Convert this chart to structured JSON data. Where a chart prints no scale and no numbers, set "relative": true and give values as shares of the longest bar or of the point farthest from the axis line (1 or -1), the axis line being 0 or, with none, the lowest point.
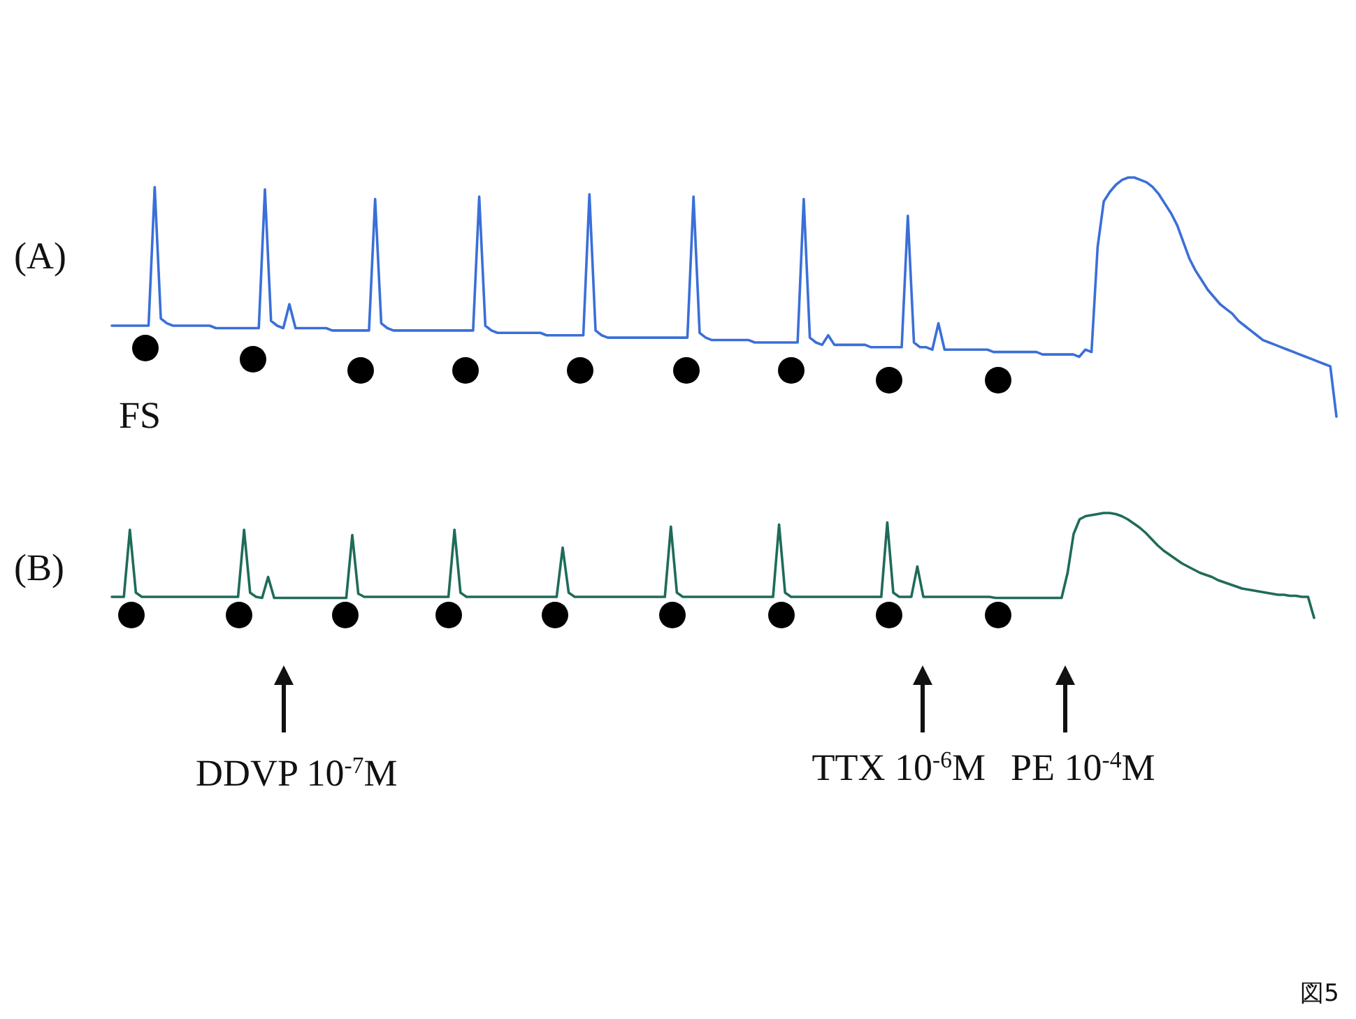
{
  "chart_data": [
    {
      "type": "line",
      "title": "(A)",
      "relative": true,
      "categories": [
        null,
        null,
        null,
        null,
        null,
        null,
        null,
        null,
        null,
        null,
        null,
        null,
        null,
        null,
        null,
        null,
        null,
        null,
        null,
        null,
        null,
        null,
        null,
        null,
        null,
        null,
        null,
        null,
        null,
        null,
        null,
        null,
        null,
        null,
        null,
        null,
        null,
        null,
        null,
        null,
        null,
        null,
        null,
        null,
        null,
        null,
        null,
        null,
        null,
        null,
        null,
        null,
        null,
        null,
        null,
        null,
        null,
        null,
        null,
        null,
        null,
        null,
        null,
        null,
        null,
        null,
        null,
        null,
        null,
        null,
        null,
        null,
        null,
        null,
        null,
        null,
        null,
        null,
        null,
        null,
        null,
        null,
        null,
        null,
        null,
        null,
        null,
        null,
        null,
        null,
        null,
        null,
        null,
        null,
        null,
        null,
        null,
        null,
        null,
        null,
        null,
        null,
        null,
        null,
        null,
        null,
        null,
        null,
        null,
        null,
        null,
        null,
        null,
        null,
        null,
        null,
        null,
        null,
        null,
        null,
        null,
        null,
        null,
        null,
        null,
        null,
        null,
        null,
        null,
        null,
        null,
        null,
        null,
        null,
        null,
        null,
        null,
        null,
        null,
        null,
        null,
        null,
        null,
        null,
        null,
        null,
        null,
        null,
        null,
        null,
        null,
        null,
        null,
        null,
        null,
        null,
        null,
        null,
        null,
        null,
        null,
        null,
        null,
        null,
        null,
        null,
        null,
        null,
        null,
        null,
        null,
        null,
        null,
        null,
        null,
        null,
        null,
        null,
        null,
        null,
        null,
        null,
        null,
        null,
        null,
        null,
        null,
        null,
        null,
        null,
        null,
        null,
        null,
        null,
        null,
        null,
        null,
        null,
        null,
        null,
        null
      ],
      "series": [
        {
          "color": "#3a6fd8",
          "values": [
            0.38,
            0.38,
            0.38,
            0.38,
            0.38,
            0.38,
            0.38,
            0.96,
            0.41,
            0.39,
            0.38,
            0.38,
            0.38,
            0.38,
            0.38,
            0.38,
            0.38,
            0.37,
            0.37,
            0.37,
            0.37,
            0.37,
            0.37,
            0.37,
            0.37,
            0.95,
            0.4,
            0.38,
            0.37,
            0.47,
            0.37,
            0.37,
            0.37,
            0.37,
            0.37,
            0.37,
            0.36,
            0.36,
            0.36,
            0.36,
            0.36,
            0.36,
            0.36,
            0.91,
            0.39,
            0.37,
            0.36,
            0.36,
            0.36,
            0.36,
            0.36,
            0.36,
            0.36,
            0.36,
            0.36,
            0.36,
            0.36,
            0.36,
            0.36,
            0.36,
            0.92,
            0.38,
            0.36,
            0.35,
            0.35,
            0.35,
            0.35,
            0.35,
            0.35,
            0.35,
            0.35,
            0.34,
            0.34,
            0.34,
            0.34,
            0.34,
            0.34,
            0.34,
            0.93,
            0.36,
            0.34,
            0.33,
            0.33,
            0.33,
            0.33,
            0.33,
            0.33,
            0.33,
            0.33,
            0.33,
            0.33,
            0.33,
            0.33,
            0.33,
            0.33,
            0.92,
            0.35,
            0.33,
            0.32,
            0.32,
            0.32,
            0.32,
            0.32,
            0.32,
            0.32,
            0.31,
            0.31,
            0.31,
            0.31,
            0.31,
            0.31,
            0.31,
            0.31,
            0.91,
            0.33,
            0.31,
            0.3,
            0.34,
            0.3,
            0.3,
            0.3,
            0.3,
            0.3,
            0.3,
            0.29,
            0.29,
            0.29,
            0.29,
            0.29,
            0.29,
            0.84,
            0.31,
            0.29,
            0.29,
            0.28,
            0.39,
            0.28,
            0.28,
            0.28,
            0.28,
            0.28,
            0.28,
            0.28,
            0.28,
            0.27,
            0.27,
            0.27,
            0.27,
            0.27,
            0.27,
            0.27,
            0.27,
            0.26,
            0.26,
            0.26,
            0.26,
            0.26,
            0.26,
            0.25,
            0.28,
            0.27,
            0.71,
            0.9,
            0.94,
            0.97,
            0.99,
            1.0,
            1.0,
            0.99,
            0.98,
            0.96,
            0.93,
            0.89,
            0.85,
            0.8,
            0.73,
            0.66,
            0.61,
            0.57,
            0.53,
            0.5,
            0.47,
            0.45,
            0.43,
            0.4,
            0.38,
            0.36,
            0.34,
            0.32,
            0.31,
            0.3,
            0.29,
            0.28,
            0.27,
            0.26,
            0.25,
            0.24,
            0.23,
            0.22,
            0.21,
            0
          ]
        }
      ],
      "annotations": [
        "FS"
      ]
    },
    {
      "type": "line",
      "title": "(B)",
      "relative": true,
      "categories": [
        null,
        null,
        null,
        null,
        null,
        null,
        null,
        null,
        null,
        null,
        null,
        null,
        null,
        null,
        null,
        null,
        null,
        null,
        null,
        null,
        null,
        null,
        null,
        null,
        null,
        null,
        null,
        null,
        null,
        null,
        null,
        null,
        null,
        null,
        null,
        null,
        null,
        null,
        null,
        null,
        null,
        null,
        null,
        null,
        null,
        null,
        null,
        null,
        null,
        null,
        null,
        null,
        null,
        null,
        null,
        null,
        null,
        null,
        null,
        null,
        null,
        null,
        null,
        null,
        null,
        null,
        null,
        null,
        null,
        null,
        null,
        null,
        null,
        null,
        null,
        null,
        null,
        null,
        null,
        null,
        null,
        null,
        null,
        null,
        null,
        null,
        null,
        null,
        null,
        null,
        null,
        null,
        null,
        null,
        null,
        null,
        null,
        null,
        null,
        null,
        null,
        null,
        null,
        null,
        null,
        null,
        null,
        null,
        null,
        null,
        null,
        null,
        null,
        null,
        null,
        null,
        null,
        null,
        null,
        null,
        null,
        null,
        null,
        null,
        null,
        null,
        null,
        null,
        null,
        null,
        null,
        null,
        null,
        null,
        null,
        null,
        null,
        null,
        null,
        null,
        null,
        null,
        null,
        null,
        null,
        null,
        null,
        null,
        null,
        null,
        null,
        null,
        null,
        null,
        null,
        null,
        null,
        null,
        null,
        null,
        null,
        null,
        null,
        null,
        null,
        null,
        null,
        null,
        null,
        null,
        null,
        null,
        null,
        null,
        null,
        null,
        null,
        null,
        null,
        null,
        null,
        null,
        null,
        null,
        null,
        null,
        null,
        null,
        null,
        null,
        null,
        null,
        null,
        null,
        null,
        null,
        null,
        null,
        null,
        null,
        null
      ],
      "series": [
        {
          "color": "#1f6b5a",
          "values": [
            0.2,
            0.2,
            0.2,
            0.84,
            0.24,
            0.2,
            0.2,
            0.2,
            0.2,
            0.2,
            0.2,
            0.2,
            0.2,
            0.2,
            0.2,
            0.2,
            0.2,
            0.2,
            0.2,
            0.2,
            0.2,
            0.2,
            0.84,
            0.24,
            0.2,
            0.19,
            0.39,
            0.19,
            0.19,
            0.19,
            0.19,
            0.19,
            0.19,
            0.19,
            0.19,
            0.19,
            0.19,
            0.19,
            0.19,
            0.19,
            0.79,
            0.23,
            0.2,
            0.2,
            0.2,
            0.2,
            0.2,
            0.2,
            0.2,
            0.2,
            0.2,
            0.2,
            0.2,
            0.2,
            0.2,
            0.2,
            0.2,
            0.84,
            0.24,
            0.2,
            0.2,
            0.2,
            0.2,
            0.2,
            0.2,
            0.2,
            0.2,
            0.2,
            0.2,
            0.2,
            0.2,
            0.2,
            0.2,
            0.2,
            0.2,
            0.67,
            0.24,
            0.2,
            0.2,
            0.2,
            0.2,
            0.2,
            0.2,
            0.2,
            0.2,
            0.2,
            0.2,
            0.2,
            0.2,
            0.2,
            0.2,
            0.2,
            0.2,
            0.87,
            0.24,
            0.2,
            0.2,
            0.2,
            0.2,
            0.2,
            0.2,
            0.2,
            0.2,
            0.2,
            0.2,
            0.2,
            0.2,
            0.2,
            0.2,
            0.2,
            0.2,
            0.89,
            0.24,
            0.2,
            0.2,
            0.2,
            0.2,
            0.2,
            0.2,
            0.2,
            0.2,
            0.2,
            0.2,
            0.2,
            0.2,
            0.2,
            0.2,
            0.2,
            0.2,
            0.91,
            0.24,
            0.2,
            0.2,
            0.2,
            0.49,
            0.2,
            0.2,
            0.2,
            0.2,
            0.2,
            0.2,
            0.2,
            0.2,
            0.2,
            0.2,
            0.2,
            0.2,
            0.19,
            0.19,
            0.19,
            0.19,
            0.19,
            0.19,
            0.19,
            0.19,
            0.19,
            0.19,
            0.19,
            0.19,
            0.43,
            0.8,
            0.94,
            0.97,
            0.98,
            0.99,
            1.0,
            1.0,
            0.99,
            0.97,
            0.94,
            0.9,
            0.86,
            0.81,
            0.75,
            0.69,
            0.64,
            0.6,
            0.56,
            0.52,
            0.49,
            0.46,
            0.43,
            0.41,
            0.39,
            0.36,
            0.34,
            0.32,
            0.3,
            0.28,
            0.27,
            0.26,
            0.25,
            0.24,
            0.23,
            0.22,
            0.22,
            0.21,
            0.21,
            0.2,
            0.2,
            0
          ]
        }
      ],
      "annotations": [
        "DDVP 10$^{-7}$M",
        "TTX 10$^{-6}$M",
        "PE 10$^{-4}$M",
        "図5"
      ]
    }
  ]
}
